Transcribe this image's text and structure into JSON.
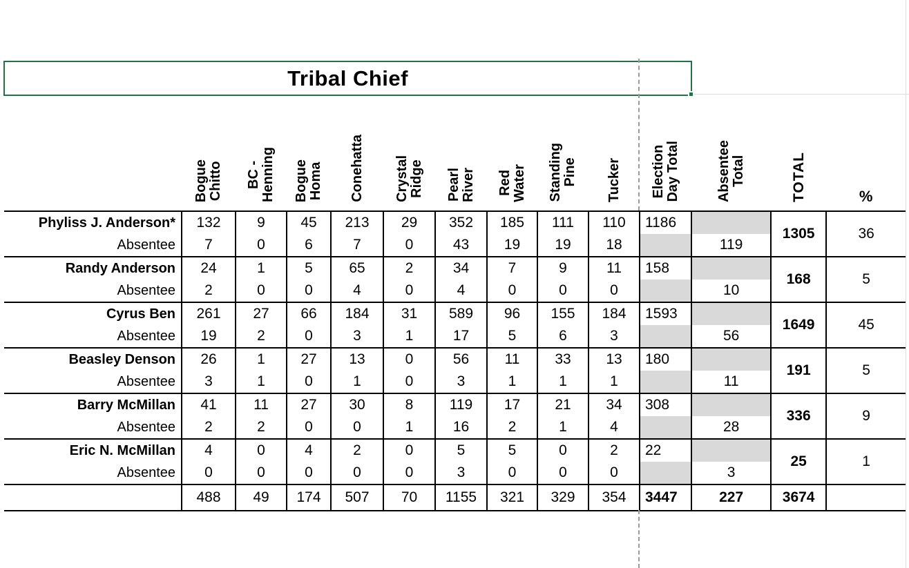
{
  "title": "Tribal Chief",
  "headers": {
    "precincts": [
      "Bogue\nChitto",
      "BC -\nHenning",
      "Bogue\nHoma",
      "Conehatta",
      "Crystal\nRidge",
      "Pearl\nRiver",
      "Red\nWater",
      "Standing\nPine",
      "Tucker"
    ],
    "election_day_total": "Election\nDay Total",
    "absentee_total": "Absentee\nTotal",
    "total": "TOTAL",
    "percent": "%"
  },
  "labels": {
    "absentee": "Absentee"
  },
  "candidates": [
    {
      "name": "Phyliss J. Anderson*",
      "votes": [
        132,
        9,
        45,
        213,
        29,
        352,
        185,
        111,
        110
      ],
      "election_day_total": 1186,
      "absentee": [
        7,
        0,
        6,
        7,
        0,
        43,
        19,
        19,
        18
      ],
      "absentee_total": 119,
      "total": 1305,
      "percent": 36
    },
    {
      "name": "Randy Anderson",
      "votes": [
        24,
        1,
        5,
        65,
        2,
        34,
        7,
        9,
        11
      ],
      "election_day_total": 158,
      "absentee": [
        2,
        0,
        0,
        4,
        0,
        4,
        0,
        0,
        0
      ],
      "absentee_total": 10,
      "total": 168,
      "percent": 5
    },
    {
      "name": "Cyrus Ben",
      "votes": [
        261,
        27,
        66,
        184,
        31,
        589,
        96,
        155,
        184
      ],
      "election_day_total": 1593,
      "absentee": [
        19,
        2,
        0,
        3,
        1,
        17,
        5,
        6,
        3
      ],
      "absentee_total": 56,
      "total": 1649,
      "percent": 45
    },
    {
      "name": "Beasley Denson",
      "votes": [
        26,
        1,
        27,
        13,
        0,
        56,
        11,
        33,
        13
      ],
      "election_day_total": 180,
      "absentee": [
        3,
        1,
        0,
        1,
        0,
        3,
        1,
        1,
        1
      ],
      "absentee_total": 11,
      "total": 191,
      "percent": 5
    },
    {
      "name": "Barry McMillan",
      "votes": [
        41,
        11,
        27,
        30,
        8,
        119,
        17,
        21,
        34
      ],
      "election_day_total": 308,
      "absentee": [
        2,
        2,
        0,
        0,
        1,
        16,
        2,
        1,
        4
      ],
      "absentee_total": 28,
      "total": 336,
      "percent": 9
    },
    {
      "name": "Eric N. McMillan",
      "votes": [
        4,
        0,
        4,
        2,
        0,
        5,
        5,
        0,
        2
      ],
      "election_day_total": 22,
      "absentee": [
        0,
        0,
        0,
        0,
        0,
        3,
        0,
        0,
        0
      ],
      "absentee_total": 3,
      "total": 25,
      "percent": 1
    }
  ],
  "totals": {
    "precincts": [
      488,
      49,
      174,
      507,
      70,
      1155,
      321,
      329,
      354
    ],
    "election_day": 3447,
    "absentee": 227,
    "grand": 3674
  },
  "colors": {
    "selection_green": "#217346",
    "shaded_cell": "#d9d9d9",
    "grid_black": "#000000",
    "page_break_gray": "#9a9a9a"
  }
}
